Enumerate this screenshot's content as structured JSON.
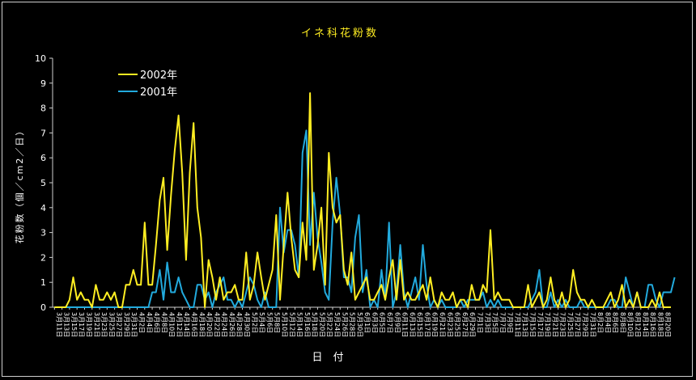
{
  "chart_data": {
    "type": "line",
    "title": "イネ科花粉数",
    "xlabel": "日　付",
    "ylabel": "花粉数（個／cm2／日）",
    "ylim": [
      0,
      10
    ],
    "yticks": [
      "0",
      "1",
      "2",
      "3",
      "4",
      "5",
      "6",
      "7",
      "8",
      "9",
      "10"
    ],
    "legend_position": "top-left",
    "x_start": "3月11日",
    "x_end": "8月20日",
    "series": [
      {
        "name": "2002年",
        "color": "#ffee22",
        "values": [
          0,
          0,
          0,
          0,
          0.3,
          1.2,
          0.3,
          0.6,
          0.3,
          0.3,
          0,
          0.9,
          0.3,
          0.3,
          0.6,
          0.3,
          0.6,
          0,
          0,
          0.9,
          0.9,
          1.5,
          0.9,
          0.9,
          3.4,
          0.9,
          0.9,
          2.5,
          4.3,
          5.2,
          2.3,
          4.5,
          6.3,
          7.7,
          5.4,
          1.9,
          5.4,
          7.4,
          4.0,
          2.8,
          0,
          1.9,
          1.2,
          0.3,
          1.2,
          0.3,
          0.6,
          0.6,
          0.9,
          0.3,
          0.3,
          2.2,
          0.3,
          0.9,
          2.2,
          1.2,
          0.3,
          0.9,
          1.5,
          3.7,
          0.3,
          2.5,
          4.6,
          2.8,
          1.5,
          1.2,
          3.4,
          1.9,
          8.6,
          1.5,
          2.5,
          4.0,
          0.9,
          6.2,
          4.0,
          3.4,
          3.7,
          1.5,
          0.9,
          2.2,
          0.3,
          0.6,
          0.9,
          1.2,
          0.3,
          0.3,
          0.6,
          0.9,
          0.3,
          1.2,
          1.9,
          0.3,
          1.9,
          0.3,
          0.6,
          0.3,
          0.3,
          0.6,
          0.9,
          0.3,
          1.2,
          0.3,
          0,
          0.6,
          0.3,
          0.3,
          0.6,
          0,
          0.3,
          0.3,
          0,
          0.9,
          0.3,
          0.3,
          0.9,
          0.6,
          3.1,
          0.3,
          0.6,
          0.3,
          0.3,
          0.3,
          0,
          0,
          0,
          0,
          0.9,
          0,
          0.3,
          0.6,
          0,
          0.3,
          1.2,
          0.3,
          0,
          0.6,
          0,
          0.3,
          1.5,
          0.6,
          0.3,
          0.3,
          0,
          0.3,
          0,
          0,
          0,
          0.3,
          0.6,
          0,
          0.3,
          0.9,
          0,
          0.3,
          0,
          0.6,
          0,
          0,
          0,
          0.3,
          0,
          0.6,
          0,
          0,
          0
        ]
      },
      {
        "name": "2001年",
        "color": "#22aadd",
        "values": [
          0,
          0,
          0,
          0,
          0,
          0,
          0,
          0,
          0,
          0,
          0,
          0,
          0,
          0,
          0,
          0,
          0,
          0,
          0,
          0,
          0,
          0,
          0,
          0,
          0,
          0,
          0.6,
          0.6,
          1.5,
          0.3,
          1.8,
          0.6,
          0.6,
          1.2,
          0.6,
          0.3,
          0,
          0,
          0.9,
          0.9,
          0.3,
          0.6,
          0,
          0.6,
          0.9,
          1.2,
          0.3,
          0.3,
          0,
          0.3,
          0,
          0.6,
          1.2,
          0.9,
          0.3,
          0,
          0.6,
          0,
          0,
          0,
          4.0,
          2.2,
          3.1,
          3.1,
          2.5,
          1.2,
          6.2,
          7.1,
          2.5,
          4.6,
          2.8,
          1.8,
          0.6,
          0.3,
          3.4,
          5.2,
          3.7,
          1.2,
          1.2,
          0.6,
          2.8,
          3.7,
          0.6,
          1.5,
          0,
          0.3,
          0,
          1.5,
          0.3,
          3.4,
          0,
          0.6,
          2.5,
          0.6,
          0,
          0.6,
          1.2,
          0.3,
          2.5,
          0.9,
          0,
          0.3,
          0,
          0.3,
          0,
          0,
          0,
          0,
          0.3,
          0,
          0.3,
          0.3,
          0.3,
          0.3,
          0.6,
          0,
          0.3,
          0,
          0.3,
          0,
          0,
          0,
          0,
          0,
          0,
          0,
          0,
          0.3,
          0.6,
          1.5,
          0,
          0,
          0.6,
          0,
          0.3,
          0,
          0.3,
          0,
          0,
          0,
          0.3,
          0,
          0,
          0,
          0,
          0,
          0,
          0,
          0.3,
          0.3,
          0,
          0,
          1.2,
          0.6,
          0,
          0.6,
          0,
          0,
          0.9,
          0.9,
          0.3,
          0,
          0.6,
          0.6,
          0.6,
          1.2
        ]
      }
    ]
  }
}
